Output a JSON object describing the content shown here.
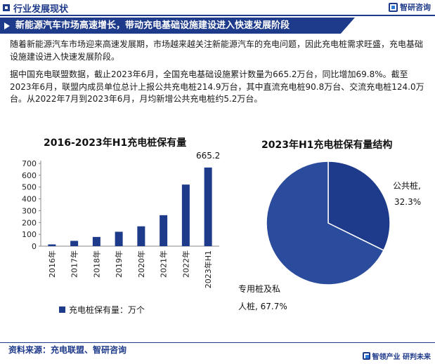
{
  "header": {
    "section_label": "行业发展现状",
    "logo_text": "智研咨询"
  },
  "banner": {
    "title": "新能源汽车市场高速增长，带动充电基础设施建设进入快速发展阶段"
  },
  "paragraphs": [
    "随着新能源汽车市场迎来高速发展期，市场越来越关注新能源汽车的充电问题，因此充电桩需求旺盛，充电基础设施建设进入快速发展阶段。",
    "据中国充电联盟数据，截止2023年6月，全国充电基础设施累计数量为665.2万台，同比增加69.8%。截至2023年6月，联盟内成员单位总计上报公共充电桩214.9万台，其中直流充电桩90.8万台、交流充电桩124.0万台。从2022年7月到2023年6月，月均新增公共充电桩约5.2万台。"
  ],
  "chart_data": [
    {
      "type": "bar",
      "title": "2016-2023年H1充电桩保有量",
      "categories": [
        "2016年",
        "2017年",
        "2018年",
        "2019年",
        "2020年",
        "2021年",
        "2022年",
        "2023年H1"
      ],
      "series": [
        {
          "name": "充电桩保有量：万个",
          "values": [
            15,
            45,
            78,
            122,
            168,
            262,
            521,
            665.2
          ]
        }
      ],
      "data_labels": {
        "2023年H1": "665.2"
      },
      "yticks": [
        0,
        100,
        200,
        300,
        400,
        500,
        600,
        700
      ],
      "ylim": [
        0,
        700
      ],
      "legend": "bottom",
      "color": "#1e3a8a"
    },
    {
      "type": "pie",
      "title": "2023年H1充电桩保有量结构",
      "slices": [
        {
          "label": "公共桩",
          "value": 32.3,
          "pct_text": "32.3%",
          "color": "#1e3a8a"
        },
        {
          "label": "专用桩及私人桩",
          "value": 67.7,
          "pct_text": "67.7%",
          "color": "#2b4b9c"
        }
      ]
    }
  ],
  "pie_labels": {
    "public_name": "公共桩,",
    "public_pct": "32.3%",
    "private_line1": "专用桩及私",
    "private_line2": "人桩, 67.7%"
  },
  "footer": {
    "source": "资料来源：充电联盟、智研咨询",
    "slogan": "智领产业 研判未来"
  }
}
